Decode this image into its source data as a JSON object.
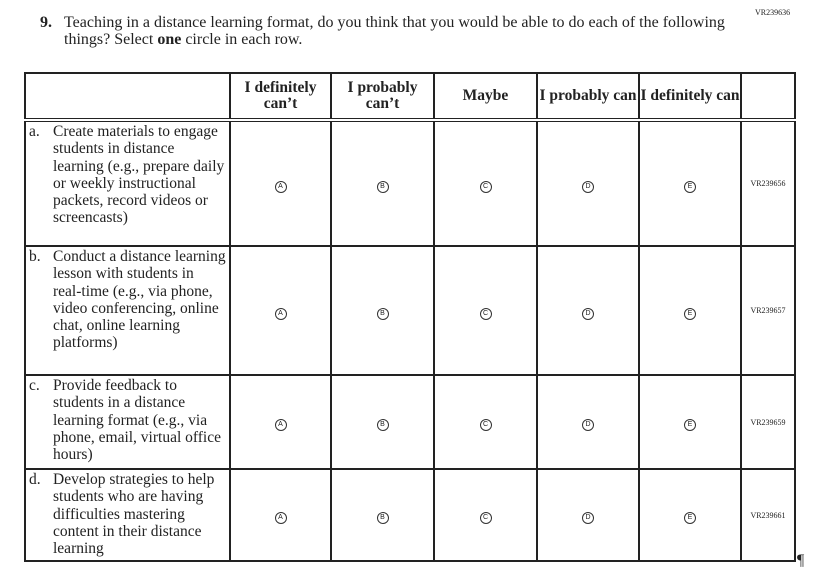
{
  "page_code": "VR239636",
  "question": {
    "number": "9.",
    "text_before": "Teaching in a distance learning format, do you think that you would be able to do each of the following things? Select ",
    "text_bold": "one",
    "text_after": " circle in each row."
  },
  "columns": [
    "I definitely can’t",
    "I probably can’t",
    "Maybe",
    "I probably can",
    "I definitely can"
  ],
  "options": [
    "A",
    "B",
    "C",
    "D",
    "E"
  ],
  "rows": [
    {
      "letter": "a.",
      "text": "Create materials to engage students in distance learning (e.g., prepare daily or weekly instructional packets, record videos or screencasts)",
      "code": "VR239656"
    },
    {
      "letter": "b.",
      "text": "Conduct a distance learning lesson with students in real-time (e.g., via phone, video conferencing, online chat, online learning platforms)",
      "code": "VR239657"
    },
    {
      "letter": "c.",
      "text": "Provide feedback to students in a distance learning format (e.g., via phone, email, virtual office hours)",
      "code": "VR239659"
    },
    {
      "letter": "d.",
      "text": "Develop strategies to help students who are having difficulties mastering content in their distance learning",
      "code": "VR239661"
    }
  ],
  "pilcrow": "¶"
}
